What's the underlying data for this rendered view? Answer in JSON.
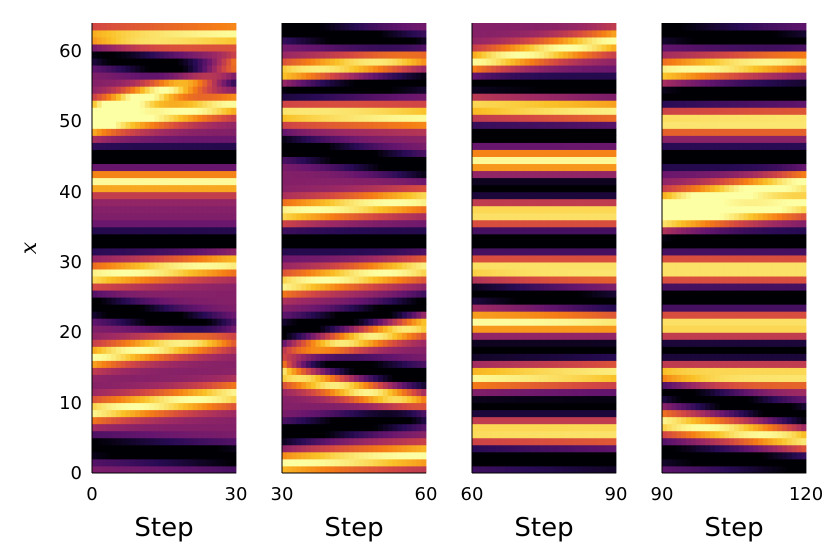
{
  "chart_data": [
    {
      "type": "heatmap",
      "colormap": "inferno",
      "x_range": [
        0,
        30
      ],
      "xticks": [
        "0",
        "30"
      ],
      "xlabel": "Step",
      "y_range": [
        0,
        64
      ],
      "yticks": [
        "0",
        "10",
        "20",
        "30",
        "40",
        "50",
        "60"
      ],
      "ylabel": "x",
      "stripes": [
        {
          "y": 3,
          "slope": -0.04,
          "kind": "dark"
        },
        {
          "y": 10,
          "slope": 0.08,
          "kind": "bright"
        },
        {
          "y": 18,
          "slope": 0.1,
          "kind": "bright"
        },
        {
          "y": 22,
          "slope": -0.12,
          "kind": "dark"
        },
        {
          "y": 29,
          "slope": 0.06,
          "kind": "bright"
        },
        {
          "y": 33,
          "slope": 0.0,
          "kind": "dark"
        },
        {
          "y": 41.5,
          "slope": 0.0,
          "kind": "bright"
        },
        {
          "y": 45,
          "slope": 0.0,
          "kind": "dark"
        },
        {
          "y": 51,
          "slope": 0.1,
          "kind": "bright"
        },
        {
          "y": 54.5,
          "slope": 0.2,
          "kind": "bright"
        },
        {
          "y": 58,
          "slope": -0.12,
          "kind": "dark"
        },
        {
          "y": 62,
          "slope": 0.02,
          "kind": "bright"
        }
      ]
    },
    {
      "type": "heatmap",
      "colormap": "inferno",
      "x_range": [
        30,
        60
      ],
      "xticks": [
        "30",
        "60"
      ],
      "xlabel": "Step",
      "y_range": [
        0,
        64
      ],
      "stripes": [
        {
          "y": 2,
          "slope": 0.04,
          "kind": "bright"
        },
        {
          "y": 7,
          "slope": 0.1,
          "kind": "dark"
        },
        {
          "y": 12,
          "slope": -0.15,
          "kind": "bright"
        },
        {
          "y": 15,
          "slope": -0.1,
          "kind": "dark"
        },
        {
          "y": 19,
          "slope": 0.15,
          "kind": "bright"
        },
        {
          "y": 22,
          "slope": 0.12,
          "kind": "dark"
        },
        {
          "y": 28,
          "slope": 0.08,
          "kind": "bright"
        },
        {
          "y": 33,
          "slope": 0.0,
          "kind": "dark"
        },
        {
          "y": 38,
          "slope": 0.06,
          "kind": "bright"
        },
        {
          "y": 45,
          "slope": -0.1,
          "kind": "dark"
        },
        {
          "y": 51,
          "slope": -0.02,
          "kind": "bright"
        },
        {
          "y": 55,
          "slope": 0.05,
          "kind": "dark"
        },
        {
          "y": 58,
          "slope": 0.08,
          "kind": "bright"
        },
        {
          "y": 62,
          "slope": -0.08,
          "kind": "dark"
        }
      ]
    },
    {
      "type": "heatmap",
      "colormap": "inferno",
      "x_range": [
        60,
        90
      ],
      "xticks": [
        "60",
        "90"
      ],
      "xlabel": "Step",
      "y_range": [
        0,
        64
      ],
      "stripes": [
        {
          "y": 2,
          "slope": -0.02,
          "kind": "dark"
        },
        {
          "y": 6,
          "slope": 0.0,
          "kind": "bright"
        },
        {
          "y": 9.5,
          "slope": 0.0,
          "kind": "dark"
        },
        {
          "y": 14,
          "slope": 0.02,
          "kind": "bright"
        },
        {
          "y": 17.5,
          "slope": 0.0,
          "kind": "dark"
        },
        {
          "y": 21.5,
          "slope": 0.0,
          "kind": "bright"
        },
        {
          "y": 25,
          "slope": -0.05,
          "kind": "dark"
        },
        {
          "y": 29,
          "slope": 0.0,
          "kind": "bright"
        },
        {
          "y": 33,
          "slope": 0.0,
          "kind": "dark"
        },
        {
          "y": 37,
          "slope": 0.0,
          "kind": "bright"
        },
        {
          "y": 40.5,
          "slope": 0.0,
          "kind": "dark"
        },
        {
          "y": 44.5,
          "slope": 0.0,
          "kind": "bright"
        },
        {
          "y": 48,
          "slope": 0.0,
          "kind": "dark"
        },
        {
          "y": 52,
          "slope": -0.02,
          "kind": "bright"
        },
        {
          "y": 55,
          "slope": 0.0,
          "kind": "dark"
        },
        {
          "y": 60,
          "slope": 0.1,
          "kind": "bright"
        }
      ]
    },
    {
      "type": "heatmap",
      "colormap": "inferno",
      "x_range": [
        90,
        120
      ],
      "xticks": [
        "90",
        "120"
      ],
      "xlabel": "Step",
      "y_range": [
        0,
        64
      ],
      "stripes": [
        {
          "y": 2,
          "slope": -0.05,
          "kind": "dark"
        },
        {
          "y": 6,
          "slope": -0.08,
          "kind": "bright"
        },
        {
          "y": 10,
          "slope": -0.12,
          "kind": "dark"
        },
        {
          "y": 14,
          "slope": 0.0,
          "kind": "bright"
        },
        {
          "y": 17.5,
          "slope": 0.0,
          "kind": "dark"
        },
        {
          "y": 21,
          "slope": 0.0,
          "kind": "bright"
        },
        {
          "y": 25,
          "slope": 0.0,
          "kind": "dark"
        },
        {
          "y": 29,
          "slope": 0.0,
          "kind": "bright"
        },
        {
          "y": 33,
          "slope": 0.0,
          "kind": "dark"
        },
        {
          "y": 37,
          "slope": 0.08,
          "kind": "bright"
        },
        {
          "y": 40,
          "slope": 0.1,
          "kind": "bright"
        },
        {
          "y": 45,
          "slope": 0.0,
          "kind": "dark"
        },
        {
          "y": 50,
          "slope": 0.0,
          "kind": "bright"
        },
        {
          "y": 54,
          "slope": 0.02,
          "kind": "dark"
        },
        {
          "y": 58,
          "slope": 0.06,
          "kind": "bright"
        },
        {
          "y": 62,
          "slope": -0.05,
          "kind": "dark"
        }
      ]
    }
  ]
}
